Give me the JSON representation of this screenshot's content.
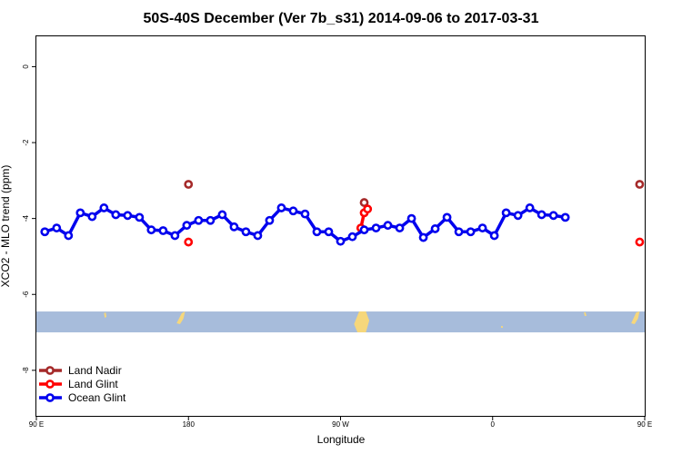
{
  "chart_data": {
    "type": "line",
    "title": "50S-40S December (Ver 7b_s31)   2014-09-06 to 2017-03-31",
    "xlabel": "Longitude",
    "ylabel": "XCO2 - MLO trend (ppm)",
    "xlim": [
      90,
      450
    ],
    "ylim": [
      -9.2,
      0.8
    ],
    "x_ticks": [
      {
        "value": 90,
        "label": "90 E"
      },
      {
        "value": 180,
        "label": "180"
      },
      {
        "value": 270,
        "label": "90 W"
      },
      {
        "value": 360,
        "label": "0"
      },
      {
        "value": 450,
        "label": "90 E"
      }
    ],
    "y_ticks": [
      {
        "value": 0,
        "label": "0"
      },
      {
        "value": -2,
        "label": "-2"
      },
      {
        "value": -4,
        "label": "-4"
      },
      {
        "value": -6,
        "label": "-6"
      },
      {
        "value": -8,
        "label": "-8"
      }
    ],
    "map_band": {
      "y_top": -6.45,
      "y_bottom": -7.0,
      "color": "#a7bcdb",
      "land_color": "#f6d77b"
    },
    "legend_position": "bottom-left",
    "series": [
      {
        "name": "Land Nadir",
        "color": "#a52a2a",
        "connect": false,
        "points": [
          [
            180,
            -3.1
          ],
          [
            284,
            -3.58
          ],
          [
            447,
            -3.1
          ]
        ]
      },
      {
        "name": "Land Glint",
        "color": "#ff0000",
        "connect": true,
        "points": [
          [
            180,
            -4.62
          ],
          [
            282,
            -4.25
          ],
          [
            284,
            -3.85
          ],
          [
            286,
            -3.75
          ],
          [
            447,
            -4.62
          ]
        ]
      },
      {
        "name": "Ocean Glint",
        "color": "#0000ee",
        "connect": true,
        "points": [
          [
            95,
            -4.35
          ],
          [
            102,
            -4.25
          ],
          [
            109,
            -4.45
          ],
          [
            116,
            -3.85
          ],
          [
            123,
            -3.95
          ],
          [
            130,
            -3.72
          ],
          [
            137,
            -3.9
          ],
          [
            144,
            -3.92
          ],
          [
            151,
            -3.97
          ],
          [
            158,
            -4.3
          ],
          [
            165,
            -4.32
          ],
          [
            172,
            -4.45
          ],
          [
            179,
            -4.18
          ],
          [
            186,
            -4.05
          ],
          [
            193,
            -4.05
          ],
          [
            200,
            -3.9
          ],
          [
            207,
            -4.22
          ],
          [
            214,
            -4.35
          ],
          [
            221,
            -4.45
          ],
          [
            228,
            -4.05
          ],
          [
            235,
            -3.72
          ],
          [
            242,
            -3.8
          ],
          [
            249,
            -3.88
          ],
          [
            256,
            -4.35
          ],
          [
            263,
            -4.35
          ],
          [
            270,
            -4.6
          ],
          [
            277,
            -4.48
          ],
          [
            284,
            -4.3
          ],
          [
            291,
            -4.25
          ],
          [
            298,
            -4.18
          ],
          [
            305,
            -4.25
          ],
          [
            312,
            -4.0
          ],
          [
            319,
            -4.5
          ],
          [
            326,
            -4.27
          ],
          [
            333,
            -3.97
          ],
          [
            340,
            -4.35
          ],
          [
            347,
            -4.35
          ],
          [
            354,
            -4.25
          ],
          [
            361,
            -4.45
          ],
          [
            368,
            -3.85
          ],
          [
            375,
            -3.92
          ],
          [
            382,
            -3.72
          ],
          [
            389,
            -3.9
          ],
          [
            396,
            -3.92
          ],
          [
            403,
            -3.97
          ]
        ]
      }
    ]
  }
}
